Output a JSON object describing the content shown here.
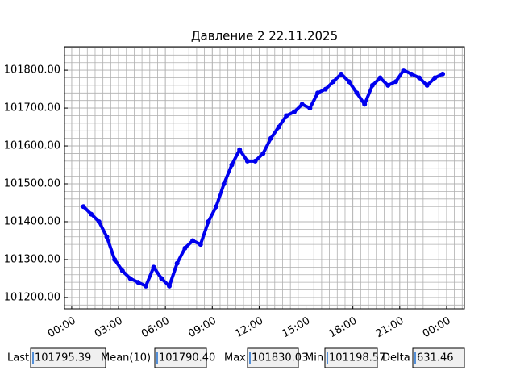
{
  "chart_data": {
    "type": "line",
    "title": "Давление 2 22.11.2025",
    "x": [
      0.75,
      1.25,
      1.75,
      2.25,
      2.75,
      3.25,
      3.75,
      4.25,
      4.75,
      5.25,
      5.75,
      6.25,
      6.75,
      7.25,
      7.75,
      8.25,
      8.75,
      9.25,
      9.75,
      10.25,
      10.75,
      11.25,
      11.75,
      12.25,
      12.75,
      13.25,
      13.75,
      14.25,
      14.75,
      15.25,
      15.75,
      16.25,
      16.75,
      17.25,
      17.75,
      18.25,
      18.75,
      19.25,
      19.75,
      20.25,
      20.75,
      21.25,
      21.75,
      22.25,
      22.75,
      23.25,
      23.75
    ],
    "series": [
      {
        "name": "Давление 2",
        "color": "#0000ee",
        "values": [
          101440,
          101420,
          101400,
          101360,
          101300,
          101270,
          101250,
          101240,
          101230,
          101280,
          101250,
          101230,
          101290,
          101330,
          101350,
          101340,
          101400,
          101440,
          101500,
          101550,
          101590,
          101560,
          101560,
          101580,
          101620,
          101650,
          101680,
          101690,
          101710,
          101700,
          101740,
          101750,
          101770,
          101790,
          101770,
          101740,
          101710,
          101760,
          101780,
          101760,
          101770,
          101800,
          101790,
          101780,
          101760,
          101780,
          101790
        ]
      }
    ],
    "xlim": [
      -0.46,
      25.14
    ],
    "xticks": [
      {
        "value": 0,
        "label": "00:00"
      },
      {
        "value": 3,
        "label": "03:00"
      },
      {
        "value": 6,
        "label": "06:00"
      },
      {
        "value": 9,
        "label": "09:00"
      },
      {
        "value": 12,
        "label": "12:00"
      },
      {
        "value": 15,
        "label": "15:00"
      },
      {
        "value": 18,
        "label": "18:00"
      },
      {
        "value": 21,
        "label": "21:00"
      },
      {
        "value": 24,
        "label": "00:00"
      }
    ],
    "ylim": [
      101170,
      101862
    ],
    "yticks": [
      {
        "value": 101200,
        "label": "101200.00"
      },
      {
        "value": 101300,
        "label": "101300.00"
      },
      {
        "value": 101400,
        "label": "101400.00"
      },
      {
        "value": 101500,
        "label": "101500.00"
      },
      {
        "value": 101600,
        "label": "101600.00"
      },
      {
        "value": 101700,
        "label": "101700.00"
      },
      {
        "value": 101800,
        "label": "101800.00"
      }
    ],
    "grid": true,
    "minor_xstep": 0.5,
    "minor_ystep": 20
  },
  "stats": [
    {
      "label": "Last",
      "value": "101795.39"
    },
    {
      "label": "Mean(10)",
      "value": "101790.40"
    },
    {
      "label": "Max",
      "value": "101830.03"
    },
    {
      "label": "Min",
      "value": "101198.57"
    },
    {
      "label": "Delta",
      "value": "631.46"
    }
  ]
}
